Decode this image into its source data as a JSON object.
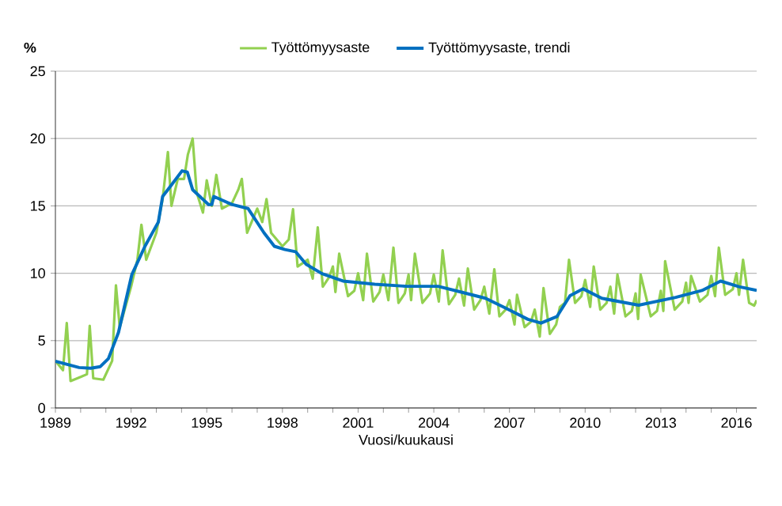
{
  "chart_data": {
    "type": "line",
    "xlabel": "Vuosi/kuukausi",
    "ylabel": "%",
    "xlim": [
      1989,
      2016.8
    ],
    "ylim": [
      0,
      25
    ],
    "yticks": [
      0,
      5,
      10,
      15,
      20,
      25
    ],
    "xticks": [
      1989,
      {
        "value": 1990,
        "label": null
      },
      {
        "value": 1991,
        "label": null
      },
      1992,
      {
        "value": 1993,
        "label": null
      },
      {
        "value": 1994,
        "label": null
      },
      1995,
      {
        "value": 1996,
        "label": null
      },
      {
        "value": 1997,
        "label": null
      },
      1998,
      {
        "value": 1999,
        "label": null
      },
      {
        "value": 2000,
        "label": null
      },
      2001,
      {
        "value": 2002,
        "label": null
      },
      {
        "value": 2003,
        "label": null
      },
      2004,
      {
        "value": 2005,
        "label": null
      },
      {
        "value": 2006,
        "label": null
      },
      2007,
      {
        "value": 2008,
        "label": null
      },
      {
        "value": 2009,
        "label": null
      },
      2010,
      {
        "value": 2011,
        "label": null
      },
      {
        "value": 2012,
        "label": null
      },
      2013,
      {
        "value": 2014,
        "label": null
      },
      {
        "value": 2015,
        "label": null
      },
      2016
    ],
    "grid": "y",
    "legend": "top",
    "series": [
      {
        "name": "Työttömyysaste",
        "color": "#92d050",
        "x": [
          1989.0,
          1989.3,
          1989.45,
          1989.6,
          1990.0,
          1990.25,
          1990.36,
          1990.5,
          1990.9,
          1991.25,
          1991.4,
          1991.55,
          1992.0,
          1992.25,
          1992.41,
          1992.6,
          1993.0,
          1993.25,
          1993.46,
          1993.6,
          1993.85,
          1994.1,
          1994.25,
          1994.44,
          1994.6,
          1994.85,
          1995.0,
          1995.2,
          1995.38,
          1995.6,
          1996.0,
          1996.25,
          1996.39,
          1996.6,
          1997.0,
          1997.2,
          1997.37,
          1997.55,
          1998.0,
          1998.25,
          1998.42,
          1998.6,
          1999.0,
          1999.2,
          1999.4,
          1999.6,
          1999.85,
          2000.0,
          2000.1,
          2000.25,
          2000.6,
          2000.85,
          2001.0,
          2001.2,
          2001.35,
          2001.6,
          2001.85,
          2002.0,
          2002.2,
          2002.4,
          2002.6,
          2002.85,
          2003.0,
          2003.1,
          2003.25,
          2003.55,
          2003.85,
          2004.0,
          2004.2,
          2004.35,
          2004.6,
          2004.85,
          2005.0,
          2005.2,
          2005.35,
          2005.6,
          2005.85,
          2006.0,
          2006.2,
          2006.4,
          2006.6,
          2006.85,
          2007.0,
          2007.2,
          2007.3,
          2007.6,
          2007.85,
          2008.0,
          2008.2,
          2008.35,
          2008.6,
          2008.85,
          2009.0,
          2009.2,
          2009.36,
          2009.6,
          2009.85,
          2010.0,
          2010.2,
          2010.34,
          2010.6,
          2010.85,
          2011.0,
          2011.15,
          2011.28,
          2011.6,
          2011.85,
          2012.0,
          2012.1,
          2012.2,
          2012.6,
          2012.85,
          2013.0,
          2013.1,
          2013.17,
          2013.55,
          2013.85,
          2014.0,
          2014.1,
          2014.2,
          2014.55,
          2014.85,
          2015.0,
          2015.15,
          2015.3,
          2015.55,
          2015.85,
          2016.0,
          2016.1,
          2016.26,
          2016.5,
          2016.7,
          2016.8
        ],
        "values": [
          3.5,
          2.8,
          6.3,
          2.0,
          2.3,
          2.5,
          6.1,
          2.2,
          2.1,
          3.5,
          9.1,
          6.0,
          9.0,
          11.0,
          13.6,
          11.0,
          13.0,
          15.5,
          19.0,
          15.0,
          17.0,
          17.0,
          18.8,
          20.0,
          16.0,
          14.5,
          16.9,
          15.0,
          17.3,
          14.8,
          15.2,
          16.2,
          17.0,
          13.0,
          14.8,
          13.8,
          15.5,
          13.0,
          12.0,
          12.5,
          14.75,
          10.5,
          11.0,
          9.6,
          13.4,
          9.0,
          9.7,
          10.5,
          8.6,
          11.45,
          8.3,
          8.7,
          10.0,
          8.0,
          11.45,
          7.9,
          8.6,
          9.9,
          8.0,
          11.9,
          7.8,
          8.5,
          9.9,
          8.0,
          11.45,
          7.8,
          8.5,
          9.9,
          7.9,
          11.7,
          7.7,
          8.4,
          9.6,
          7.6,
          10.35,
          7.3,
          8.0,
          9.0,
          7.0,
          10.3,
          6.8,
          7.3,
          8.0,
          6.2,
          8.4,
          6.0,
          6.4,
          7.3,
          5.3,
          8.9,
          5.5,
          6.2,
          7.5,
          7.8,
          11.0,
          7.8,
          8.3,
          9.5,
          7.5,
          10.5,
          7.3,
          7.8,
          9.0,
          7.0,
          9.9,
          6.8,
          7.2,
          8.5,
          6.6,
          9.9,
          6.8,
          7.2,
          8.7,
          7.2,
          10.9,
          7.3,
          7.9,
          9.3,
          7.8,
          9.8,
          7.9,
          8.4,
          9.8,
          8.3,
          11.9,
          8.4,
          8.8,
          10.0,
          8.4,
          11.0,
          7.8,
          7.6,
          8.0
        ]
      },
      {
        "name": "Työttömyysaste, trendi",
        "color": "#0070c0",
        "x": [
          1989.0,
          1989.94,
          1990.4,
          1990.78,
          1991.1,
          1991.5,
          1992.03,
          1992.55,
          1993.08,
          1993.25,
          1993.54,
          1994.02,
          1994.23,
          1994.44,
          1995.07,
          1995.2,
          1995.28,
          1996.0,
          1996.64,
          1997.27,
          1997.68,
          1998.1,
          1998.52,
          1998.94,
          1999.57,
          2000.4,
          2001.66,
          2002.92,
          2004.17,
          2005.0,
          2006.05,
          2006.9,
          2007.73,
          2008.25,
          2008.88,
          2009.4,
          2009.92,
          2010.66,
          2012.12,
          2013.59,
          2014.63,
          2015.37,
          2016.1,
          2016.8
        ],
        "values": [
          3.47,
          3.0,
          2.95,
          3.07,
          3.66,
          5.6,
          9.9,
          12.0,
          13.8,
          15.7,
          16.4,
          17.6,
          17.5,
          16.2,
          15.1,
          15.1,
          15.7,
          15.1,
          14.8,
          13.0,
          12.0,
          11.76,
          11.6,
          10.67,
          9.97,
          9.42,
          9.19,
          9.03,
          9.03,
          8.64,
          8.14,
          7.36,
          6.58,
          6.3,
          6.78,
          8.33,
          8.84,
          8.14,
          7.63,
          8.21,
          8.72,
          9.42,
          9.0,
          8.72
        ]
      }
    ]
  }
}
